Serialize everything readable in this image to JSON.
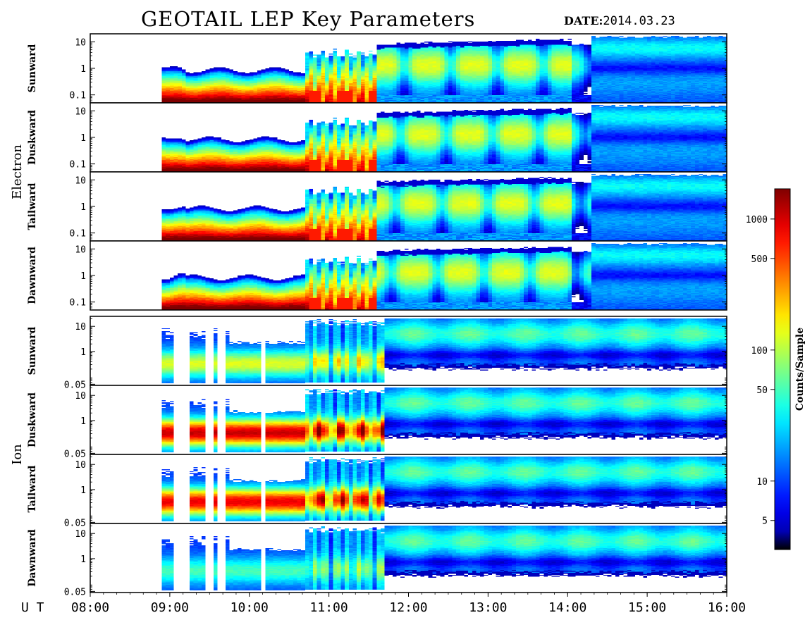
{
  "title": "GEOTAIL LEP Key Parameters",
  "date_label": "DATE:",
  "date_value": "2014.03.23",
  "chart_data": {
    "type": "heatmap",
    "x_axis": {
      "label": "U T",
      "ticks": [
        "08:00",
        "09:00",
        "10:00",
        "11:00",
        "12:00",
        "13:00",
        "14:00",
        "15:00",
        "16:00"
      ],
      "range_hours": [
        8,
        16
      ]
    },
    "data_start_hour": 8.86,
    "groups": [
      {
        "name": "Electron",
        "y_range": [
          0.05,
          20
        ],
        "y_ticks": [
          {
            "value": 10,
            "label": "10"
          },
          {
            "value": 1,
            "label": "1"
          },
          {
            "value": 0.1,
            "label": "0.1"
          }
        ],
        "panels": [
          {
            "name": "Sunward"
          },
          {
            "name": "Duskward"
          },
          {
            "name": "Tailward"
          },
          {
            "name": "Dawnward"
          }
        ]
      },
      {
        "name": "Ion",
        "y_range": [
          0.045,
          25
        ],
        "y_ticks": [
          {
            "value": 10,
            "label": "10"
          },
          {
            "value": 1,
            "label": "1"
          },
          {
            "value": 0.05,
            "label": "0.05"
          }
        ],
        "panels": [
          {
            "name": "Sunward"
          },
          {
            "name": "Duskward"
          },
          {
            "name": "Tailward"
          },
          {
            "name": "Dawnward"
          }
        ]
      }
    ],
    "colorbar": {
      "label": "Counts/Sample",
      "range": [
        3,
        1700
      ],
      "scale": "log",
      "ticks": [
        {
          "value": 1000,
          "label": "1000"
        },
        {
          "value": 500,
          "label": "500"
        },
        {
          "value": 100,
          "label": "100"
        },
        {
          "value": 50,
          "label": "50"
        },
        {
          "value": 10,
          "label": "10"
        },
        {
          "value": 5,
          "label": "5"
        }
      ]
    }
  }
}
